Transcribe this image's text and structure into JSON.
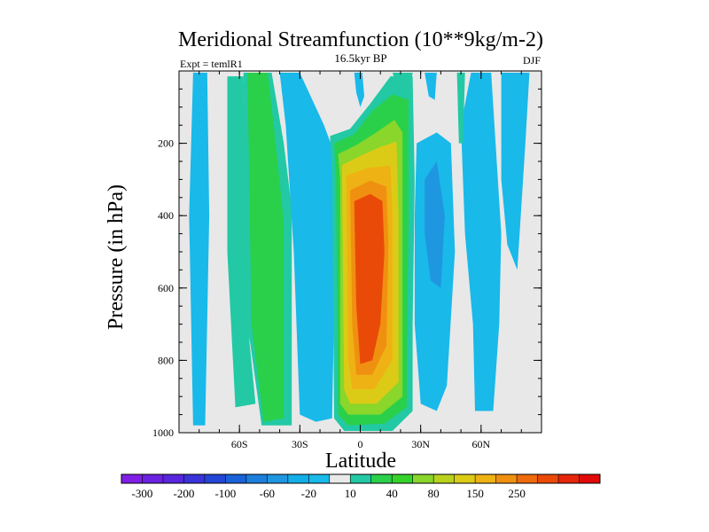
{
  "chart_data": {
    "type": "heatmap",
    "title": "Meridional Streamfunction (10**9kg/m-2)",
    "subtitle": "16.5kyr BP",
    "left_label": "Expt = temlR1",
    "right_label": "DJF",
    "xlabel": "Latitude",
    "ylabel": "Pressure (in hPa)",
    "xlim": [
      -90,
      90
    ],
    "ylim": [
      1000,
      0
    ],
    "x_ticks": [
      {
        "value": -60,
        "label": "60S"
      },
      {
        "value": -30,
        "label": "30S"
      },
      {
        "value": 0,
        "label": "0"
      },
      {
        "value": 30,
        "label": "30N"
      },
      {
        "value": 60,
        "label": "60N"
      }
    ],
    "y_ticks": [
      {
        "value": 200,
        "label": "200"
      },
      {
        "value": 400,
        "label": "400"
      },
      {
        "value": 600,
        "label": "600"
      },
      {
        "value": 800,
        "label": "800"
      },
      {
        "value": 1000,
        "label": "1000"
      }
    ],
    "colorbar": {
      "colors": [
        "#7f1fe6",
        "#6a22e0",
        "#5826dc",
        "#3a33d8",
        "#2446d6",
        "#1a62d8",
        "#1c7fdc",
        "#1f97e0",
        "#12aee8",
        "#19b9ea",
        "#eaeaea",
        "#22c9a4",
        "#2ad04a",
        "#36d22c",
        "#8ad62a",
        "#b9d21e",
        "#dccb16",
        "#efb214",
        "#f09010",
        "#ee6a0c",
        "#ea4a08",
        "#e6260a",
        "#e20a08"
      ],
      "labels": [
        {
          "after_index": 0,
          "text": "-300"
        },
        {
          "after_index": 2,
          "text": "-200"
        },
        {
          "after_index": 4,
          "text": "-100"
        },
        {
          "after_index": 6,
          "text": "-60"
        },
        {
          "after_index": 8,
          "text": "-20"
        },
        {
          "after_index": 10,
          "text": "10"
        },
        {
          "after_index": 12,
          "text": "40"
        },
        {
          "after_index": 14,
          "text": "80"
        },
        {
          "after_index": 16,
          "text": "150"
        },
        {
          "after_index": 18,
          "text": "250"
        }
      ]
    },
    "regions": [
      {
        "name": "sh-polar-cell",
        "level": "-20",
        "color": "#19b9ea",
        "points": [
          [
            -83,
            5
          ],
          [
            -76,
            5
          ],
          [
            -75,
            400
          ],
          [
            -77,
            980
          ],
          [
            -83,
            980
          ],
          [
            -85,
            400
          ]
        ]
      },
      {
        "name": "sh-highlat-positive",
        "level": "10",
        "color": "#22c9a4",
        "points": [
          [
            -66,
            15
          ],
          [
            -58,
            15
          ],
          [
            -55,
            750
          ],
          [
            -52,
            920
          ],
          [
            -62,
            930
          ],
          [
            -66,
            500
          ]
        ]
      },
      {
        "name": "sh-ferrel-outer",
        "level": "10",
        "color": "#22c9a4",
        "points": [
          [
            -58,
            5
          ],
          [
            -44,
            5
          ],
          [
            -38,
            200
          ],
          [
            -34,
            380
          ],
          [
            -34,
            980
          ],
          [
            -49,
            980
          ],
          [
            -56,
            700
          ]
        ]
      },
      {
        "name": "sh-ferrel-core",
        "level": "40",
        "color": "#2ad04a",
        "points": [
          [
            -56,
            5
          ],
          [
            -46,
            5
          ],
          [
            -42,
            200
          ],
          [
            -38,
            420
          ],
          [
            -38,
            960
          ],
          [
            -48,
            970
          ],
          [
            -54,
            700
          ]
        ]
      },
      {
        "name": "sh-subtropic-neg",
        "level": "-20",
        "color": "#19b9ea",
        "points": [
          [
            -40,
            5
          ],
          [
            -30,
            5
          ],
          [
            -18,
            150
          ],
          [
            -12,
            240
          ],
          [
            -12,
            380
          ],
          [
            -14,
            960
          ],
          [
            -22,
            970
          ],
          [
            -30,
            950
          ],
          [
            -33,
            500
          ],
          [
            -37,
            150
          ]
        ]
      },
      {
        "name": "hadley-10",
        "level": "10",
        "color": "#22c9a4",
        "points": [
          [
            -15,
            180
          ],
          [
            -5,
            160
          ],
          [
            5,
            90
          ],
          [
            15,
            15
          ],
          [
            26,
            15
          ],
          [
            27,
            300
          ],
          [
            26,
            700
          ],
          [
            26,
            940
          ],
          [
            16,
            995
          ],
          [
            -8,
            995
          ],
          [
            -13,
            960
          ],
          [
            -14,
            300
          ]
        ]
      },
      {
        "name": "hadley-40",
        "level": "40",
        "color": "#2ad04a",
        "points": [
          [
            -13,
            200
          ],
          [
            -3,
            175
          ],
          [
            6,
            110
          ],
          [
            16,
            65
          ],
          [
            24,
            80
          ],
          [
            24,
            400
          ],
          [
            23,
            930
          ],
          [
            12,
            975
          ],
          [
            -6,
            980
          ],
          [
            -11,
            950
          ],
          [
            -12,
            300
          ]
        ]
      },
      {
        "name": "hadley-80",
        "level": "80",
        "color": "#8ad62a",
        "points": [
          [
            -11,
            230
          ],
          [
            -2,
            205
          ],
          [
            8,
            170
          ],
          [
            17,
            135
          ],
          [
            21,
            170
          ],
          [
            21,
            400
          ],
          [
            21,
            900
          ],
          [
            10,
            950
          ],
          [
            -6,
            950
          ],
          [
            -10,
            920
          ],
          [
            -10,
            300
          ]
        ]
      },
      {
        "name": "hadley-120",
        "level": "120",
        "color": "#dccb16",
        "points": [
          [
            -9,
            260
          ],
          [
            0,
            235
          ],
          [
            10,
            210
          ],
          [
            18,
            195
          ],
          [
            19,
            400
          ],
          [
            19,
            860
          ],
          [
            8,
            920
          ],
          [
            -5,
            920
          ],
          [
            -8,
            880
          ],
          [
            -9,
            350
          ]
        ]
      },
      {
        "name": "hadley-150",
        "level": "150",
        "color": "#efb214",
        "points": [
          [
            -7,
            290
          ],
          [
            4,
            268
          ],
          [
            15,
            262
          ],
          [
            16,
            400
          ],
          [
            16,
            800
          ],
          [
            7,
            880
          ],
          [
            -4,
            880
          ],
          [
            -6,
            800
          ]
        ]
      },
      {
        "name": "hadley-200",
        "level": "200",
        "color": "#f09010",
        "points": [
          [
            -5,
            330
          ],
          [
            5,
            303
          ],
          [
            13,
            320
          ],
          [
            14,
            480
          ],
          [
            13,
            760
          ],
          [
            6,
            840
          ],
          [
            -2,
            840
          ],
          [
            -4,
            700
          ]
        ]
      },
      {
        "name": "hadley-250",
        "level": "250",
        "color": "#ea4a08",
        "points": [
          [
            -3,
            360
          ],
          [
            5,
            340
          ],
          [
            11,
            360
          ],
          [
            12,
            500
          ],
          [
            10,
            700
          ],
          [
            6,
            800
          ],
          [
            0,
            810
          ],
          [
            -2,
            650
          ]
        ]
      },
      {
        "name": "nh-subtropic-neg",
        "level": "-20",
        "color": "#19b9ea",
        "points": [
          [
            28,
            200
          ],
          [
            38,
            170
          ],
          [
            45,
            200
          ],
          [
            47,
            500
          ],
          [
            43,
            870
          ],
          [
            38,
            940
          ],
          [
            30,
            920
          ],
          [
            27,
            700
          ],
          [
            27,
            400
          ]
        ]
      },
      {
        "name": "nh-subtropic-core",
        "level": "-60",
        "color": "#1f97e0",
        "points": [
          [
            32,
            300
          ],
          [
            38,
            250
          ],
          [
            42,
            400
          ],
          [
            40,
            600
          ],
          [
            35,
            580
          ],
          [
            32,
            450
          ]
        ]
      },
      {
        "name": "nh-ferrel",
        "level": "10",
        "color": "#22c9a4",
        "points": [
          [
            58,
            470
          ],
          [
            62,
            470
          ],
          [
            63,
            820
          ],
          [
            62,
            850
          ],
          [
            57,
            830
          ],
          [
            56,
            640
          ]
        ]
      },
      {
        "name": "nh-polar-neg",
        "level": "-20",
        "color": "#19b9ea",
        "points": [
          [
            55,
            5
          ],
          [
            65,
            5
          ],
          [
            70,
            450
          ],
          [
            69,
            700
          ],
          [
            66,
            940
          ],
          [
            57,
            940
          ],
          [
            56,
            700
          ],
          [
            52,
            450
          ],
          [
            50,
            150
          ]
        ]
      },
      {
        "name": "nh-polar-cell-2",
        "level": "-20",
        "color": "#19b9ea",
        "points": [
          [
            70,
            5
          ],
          [
            84,
            5
          ],
          [
            82,
            200
          ],
          [
            78,
            550
          ],
          [
            73,
            480
          ],
          [
            70,
            300
          ]
        ]
      },
      {
        "name": "top-blob-1",
        "level": "-20",
        "color": "#19b9ea",
        "points": [
          [
            -3,
            5
          ],
          [
            1,
            5
          ],
          [
            2,
            70
          ],
          [
            0,
            100
          ],
          [
            -2,
            60
          ]
        ]
      },
      {
        "name": "top-blob-2",
        "level": "10",
        "color": "#22c9a4",
        "points": [
          [
            16,
            5
          ],
          [
            26,
            5
          ],
          [
            24,
            70
          ],
          [
            18,
            40
          ]
        ]
      },
      {
        "name": "top-blob-3",
        "level": "-20",
        "color": "#19b9ea",
        "points": [
          [
            32,
            5
          ],
          [
            38,
            5
          ],
          [
            37,
            80
          ],
          [
            34,
            70
          ]
        ]
      },
      {
        "name": "top-blob-4",
        "level": "10",
        "color": "#22c9a4",
        "points": [
          [
            48,
            5
          ],
          [
            52,
            5
          ],
          [
            51,
            200
          ],
          [
            49,
            200
          ]
        ]
      }
    ]
  }
}
